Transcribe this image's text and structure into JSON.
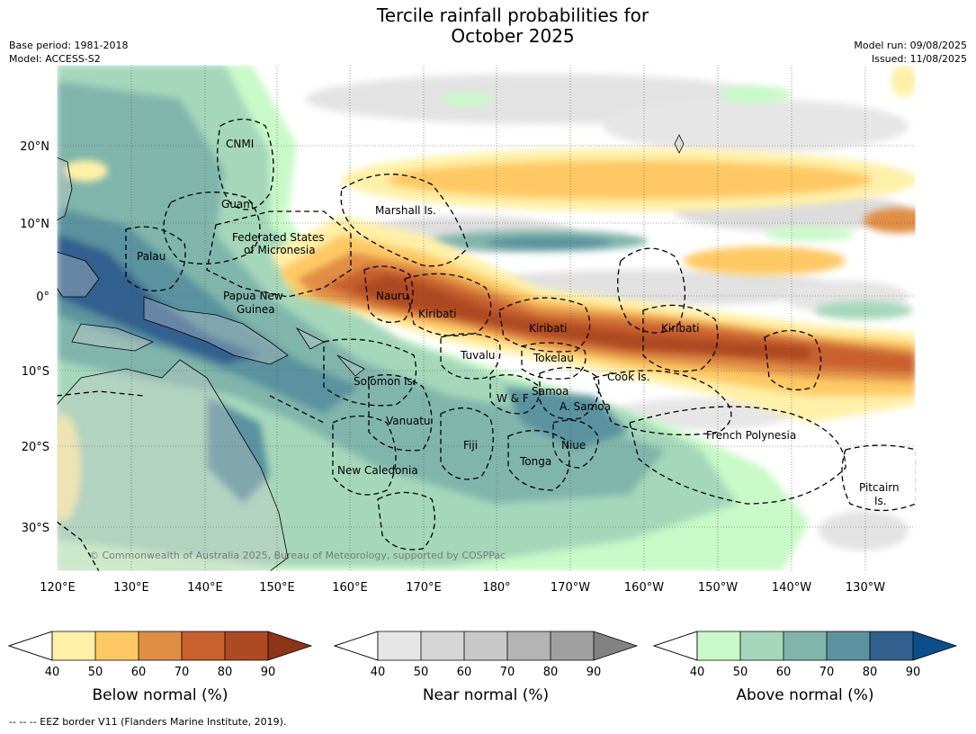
{
  "title": {
    "line1": "Tercile rainfall probabilities for",
    "line2": "October 2025"
  },
  "meta": {
    "base_period": "Base period: 1981-2018",
    "model": "Model: ACCESS-S2",
    "model_run": "Model run: 09/08/2025",
    "issued": "Issued: 11/08/2025"
  },
  "lat_ticks": [
    "20°N",
    "10°N",
    "0°",
    "10°S",
    "20°S",
    "30°S"
  ],
  "lon_ticks": [
    "120°E",
    "130°E",
    "140°E",
    "150°E",
    "160°E",
    "170°E",
    "180°",
    "170°W",
    "160°W",
    "150°W",
    "140°W",
    "130°W"
  ],
  "regions": [
    "CNMI",
    "Guam",
    "Marshall Is.",
    "Federated States",
    "of Micronesia",
    "Palau",
    "Papua New",
    "Guinea",
    "Nauru",
    "Kiribati",
    "Kiribati",
    "Kiribati",
    "Tuvalu",
    "Tokelau",
    "Solomon Is.",
    "Samoa",
    "W & F",
    "A. Samoa",
    "Cook Is.",
    "Vanuatu",
    "Fiji",
    "Niue",
    "Tonga",
    "New Caledonia",
    "French Polynesia",
    "Pitcairn",
    "Is."
  ],
  "copyright": "© Commonwealth of Australia 2025, Bureau of Meteorology, supported by COSPPac",
  "colorbars": [
    {
      "label": "Below normal (%)",
      "ticks": [
        "40",
        "50",
        "60",
        "70",
        "80",
        "90"
      ],
      "colors": [
        "#fff0a8",
        "#fec965",
        "#e08e45",
        "#c9612e",
        "#ad4a24",
        "#8e3518"
      ]
    },
    {
      "label": "Near normal (%)",
      "ticks": [
        "40",
        "50",
        "60",
        "70",
        "80",
        "90"
      ],
      "colors": [
        "#e6e6e6",
        "#d6d6d6",
        "#c8c8c8",
        "#b4b4b4",
        "#a0a0a0",
        "#828282"
      ]
    },
    {
      "label": "Above normal (%)",
      "ticks": [
        "40",
        "50",
        "60",
        "70",
        "80",
        "90"
      ],
      "colors": [
        "#c9f9c8",
        "#a5d7bb",
        "#80b5ab",
        "#5a939f",
        "#31608f",
        "#0b4f8a"
      ]
    }
  ],
  "footer": "--  --  -- EEZ border V11 (Flanders Marine Institute, 2019)."
}
